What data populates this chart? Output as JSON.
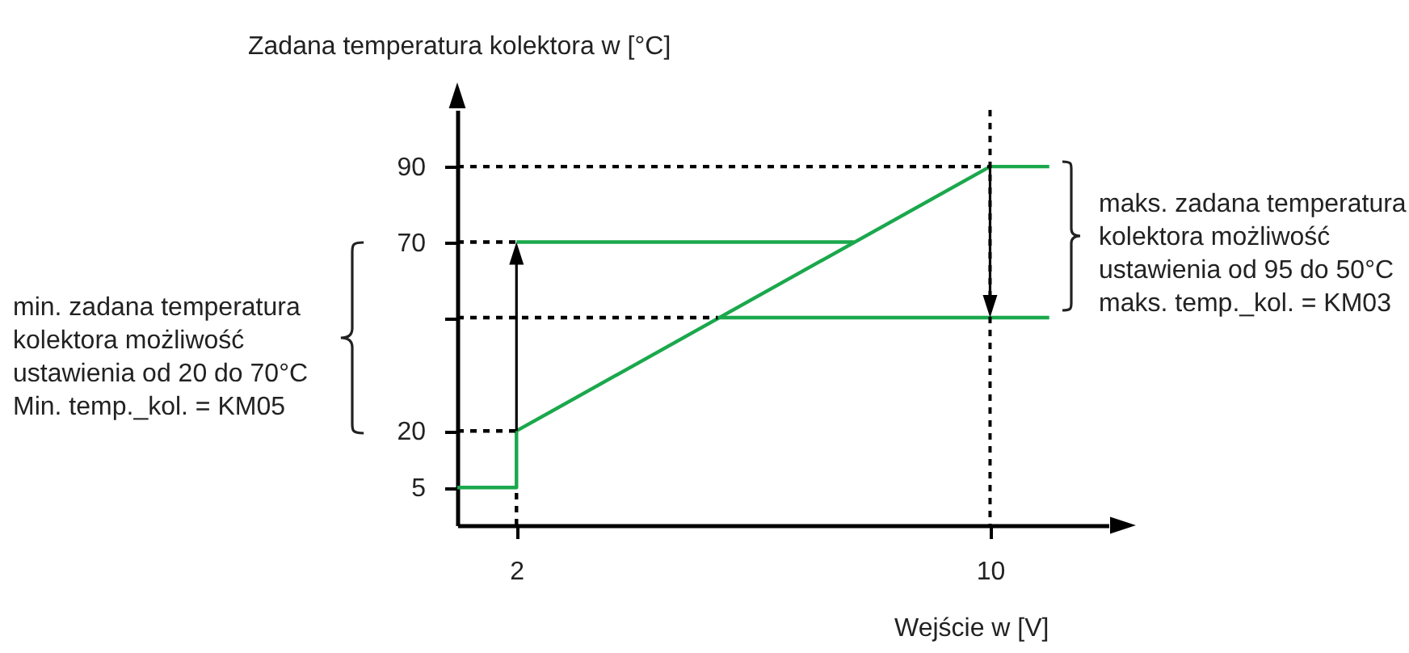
{
  "chart_data": {
    "type": "line",
    "xlabel": "Wejście w [V]",
    "ylabel": "Zadana temperatura kolektora w [°C]",
    "annotations": [
      "min. zadana temperatura kolektora możliwość ustawienia od 20 do 70°C Min. temp._kol. = KM05",
      "maks. zadana temperatura kolektora możliwość ustawienia od 95 do 50°C maks. temp._kol. = KM03"
    ],
    "xlim": [
      1,
      12
    ],
    "xticks": [
      2,
      10
    ],
    "ylim": [
      -5,
      105
    ],
    "yticks": [
      5,
      20,
      {
        "value": 50,
        "label": null
      },
      70,
      90
    ],
    "grid": false,
    "series": [
      {
        "color": "#1aa84c",
        "x": [
          1,
          2,
          2,
          10,
          11
        ],
        "values": [
          5,
          5,
          20,
          90,
          90
        ]
      },
      {
        "color": "#1aa84c",
        "x": [
          2,
          7.7
        ],
        "values": [
          70,
          70
        ]
      },
      {
        "color": "#1aa84c",
        "x": [
          5.4,
          11
        ],
        "values": [
          50,
          50
        ]
      },
      {
        "color": "#000000",
        "line_style": "dashed",
        "x": [
          1,
          10
        ],
        "values": [
          90,
          90
        ]
      },
      {
        "color": "#000000",
        "line_style": "dashed",
        "x": [
          1,
          2
        ],
        "values": [
          70,
          70
        ]
      },
      {
        "color": "#000000",
        "line_style": "dashed",
        "x": [
          1,
          5.4
        ],
        "values": [
          50,
          50
        ]
      },
      {
        "color": "#000000",
        "line_style": "dashed",
        "x": [
          1,
          2
        ],
        "values": [
          20,
          20
        ]
      },
      {
        "color": "#000000",
        "line_style": "dashed",
        "x": [
          2,
          2
        ],
        "values": [
          -5,
          5
        ]
      }
    ],
    "ref_lines": [
      {
        "axis": "x",
        "value": 10,
        "color": "#000000",
        "line_style": "dashed"
      }
    ]
  }
}
